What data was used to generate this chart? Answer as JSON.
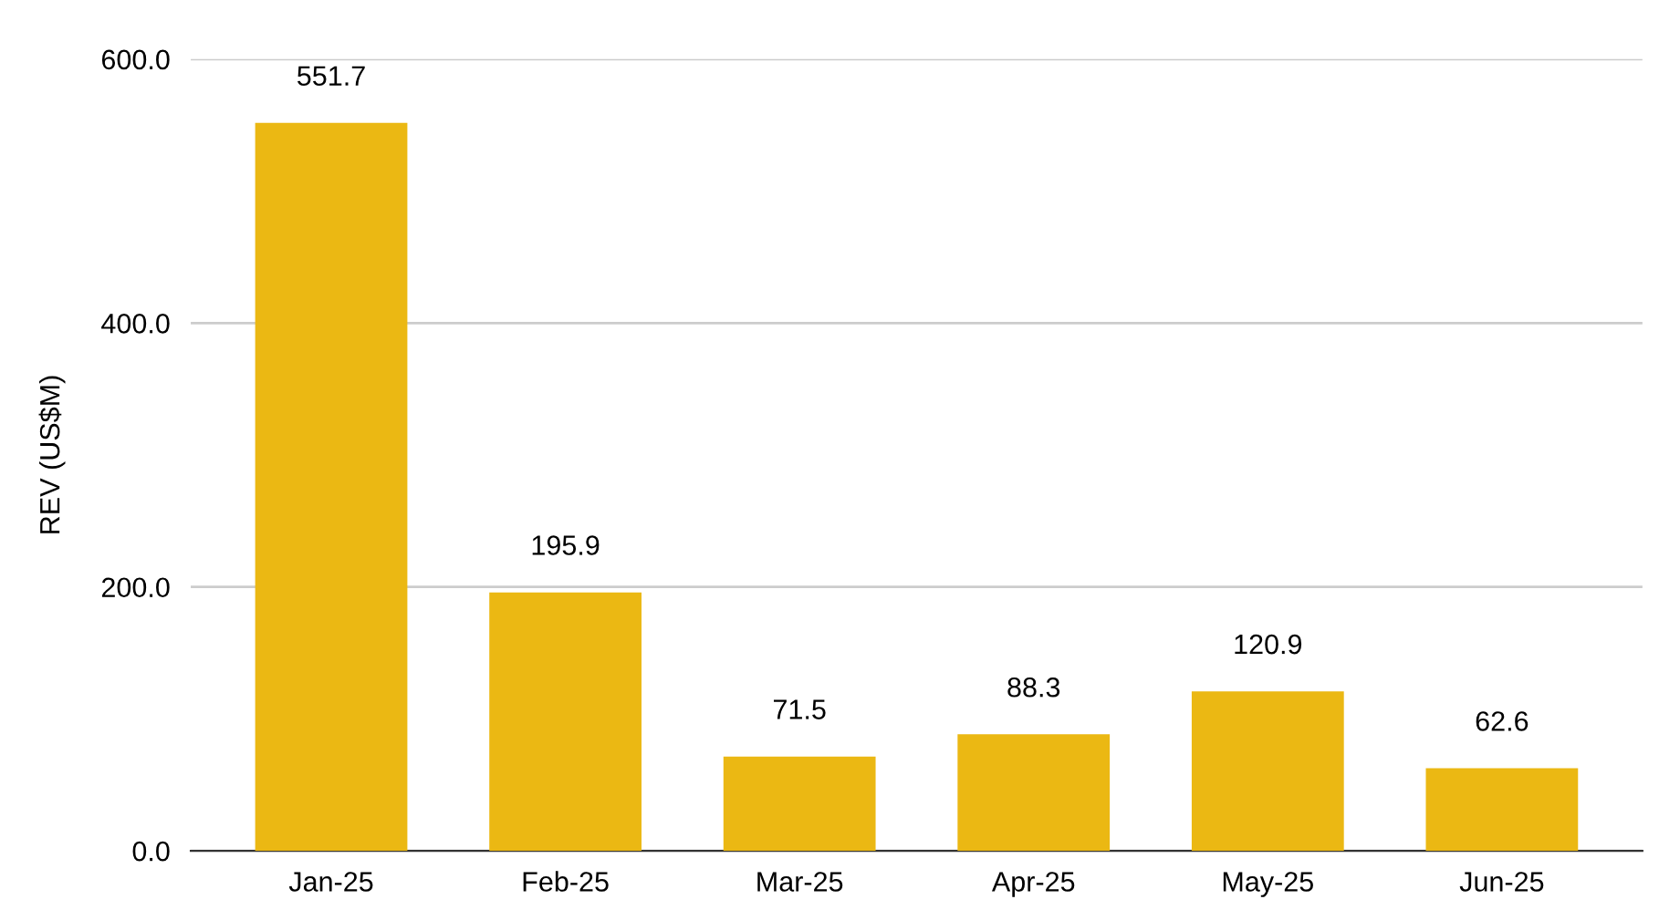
{
  "chart_data": {
    "type": "bar",
    "ylabel": "REV (US$M)",
    "categories": [
      "Jan-25",
      "Feb-25",
      "Mar-25",
      "Apr-25",
      "May-25",
      "Jun-25"
    ],
    "values": [
      551.7,
      195.9,
      71.5,
      88.3,
      120.9,
      62.6
    ],
    "color": "#ebb813",
    "ylim": [
      0,
      600
    ],
    "yticks": [
      {
        "value": 0,
        "label": "0.0"
      },
      {
        "value": 200,
        "label": "200.0"
      },
      {
        "value": 400,
        "label": "400.0"
      },
      {
        "value": 600,
        "label": "600.0"
      }
    ],
    "grid": "y",
    "data_labels": true
  }
}
